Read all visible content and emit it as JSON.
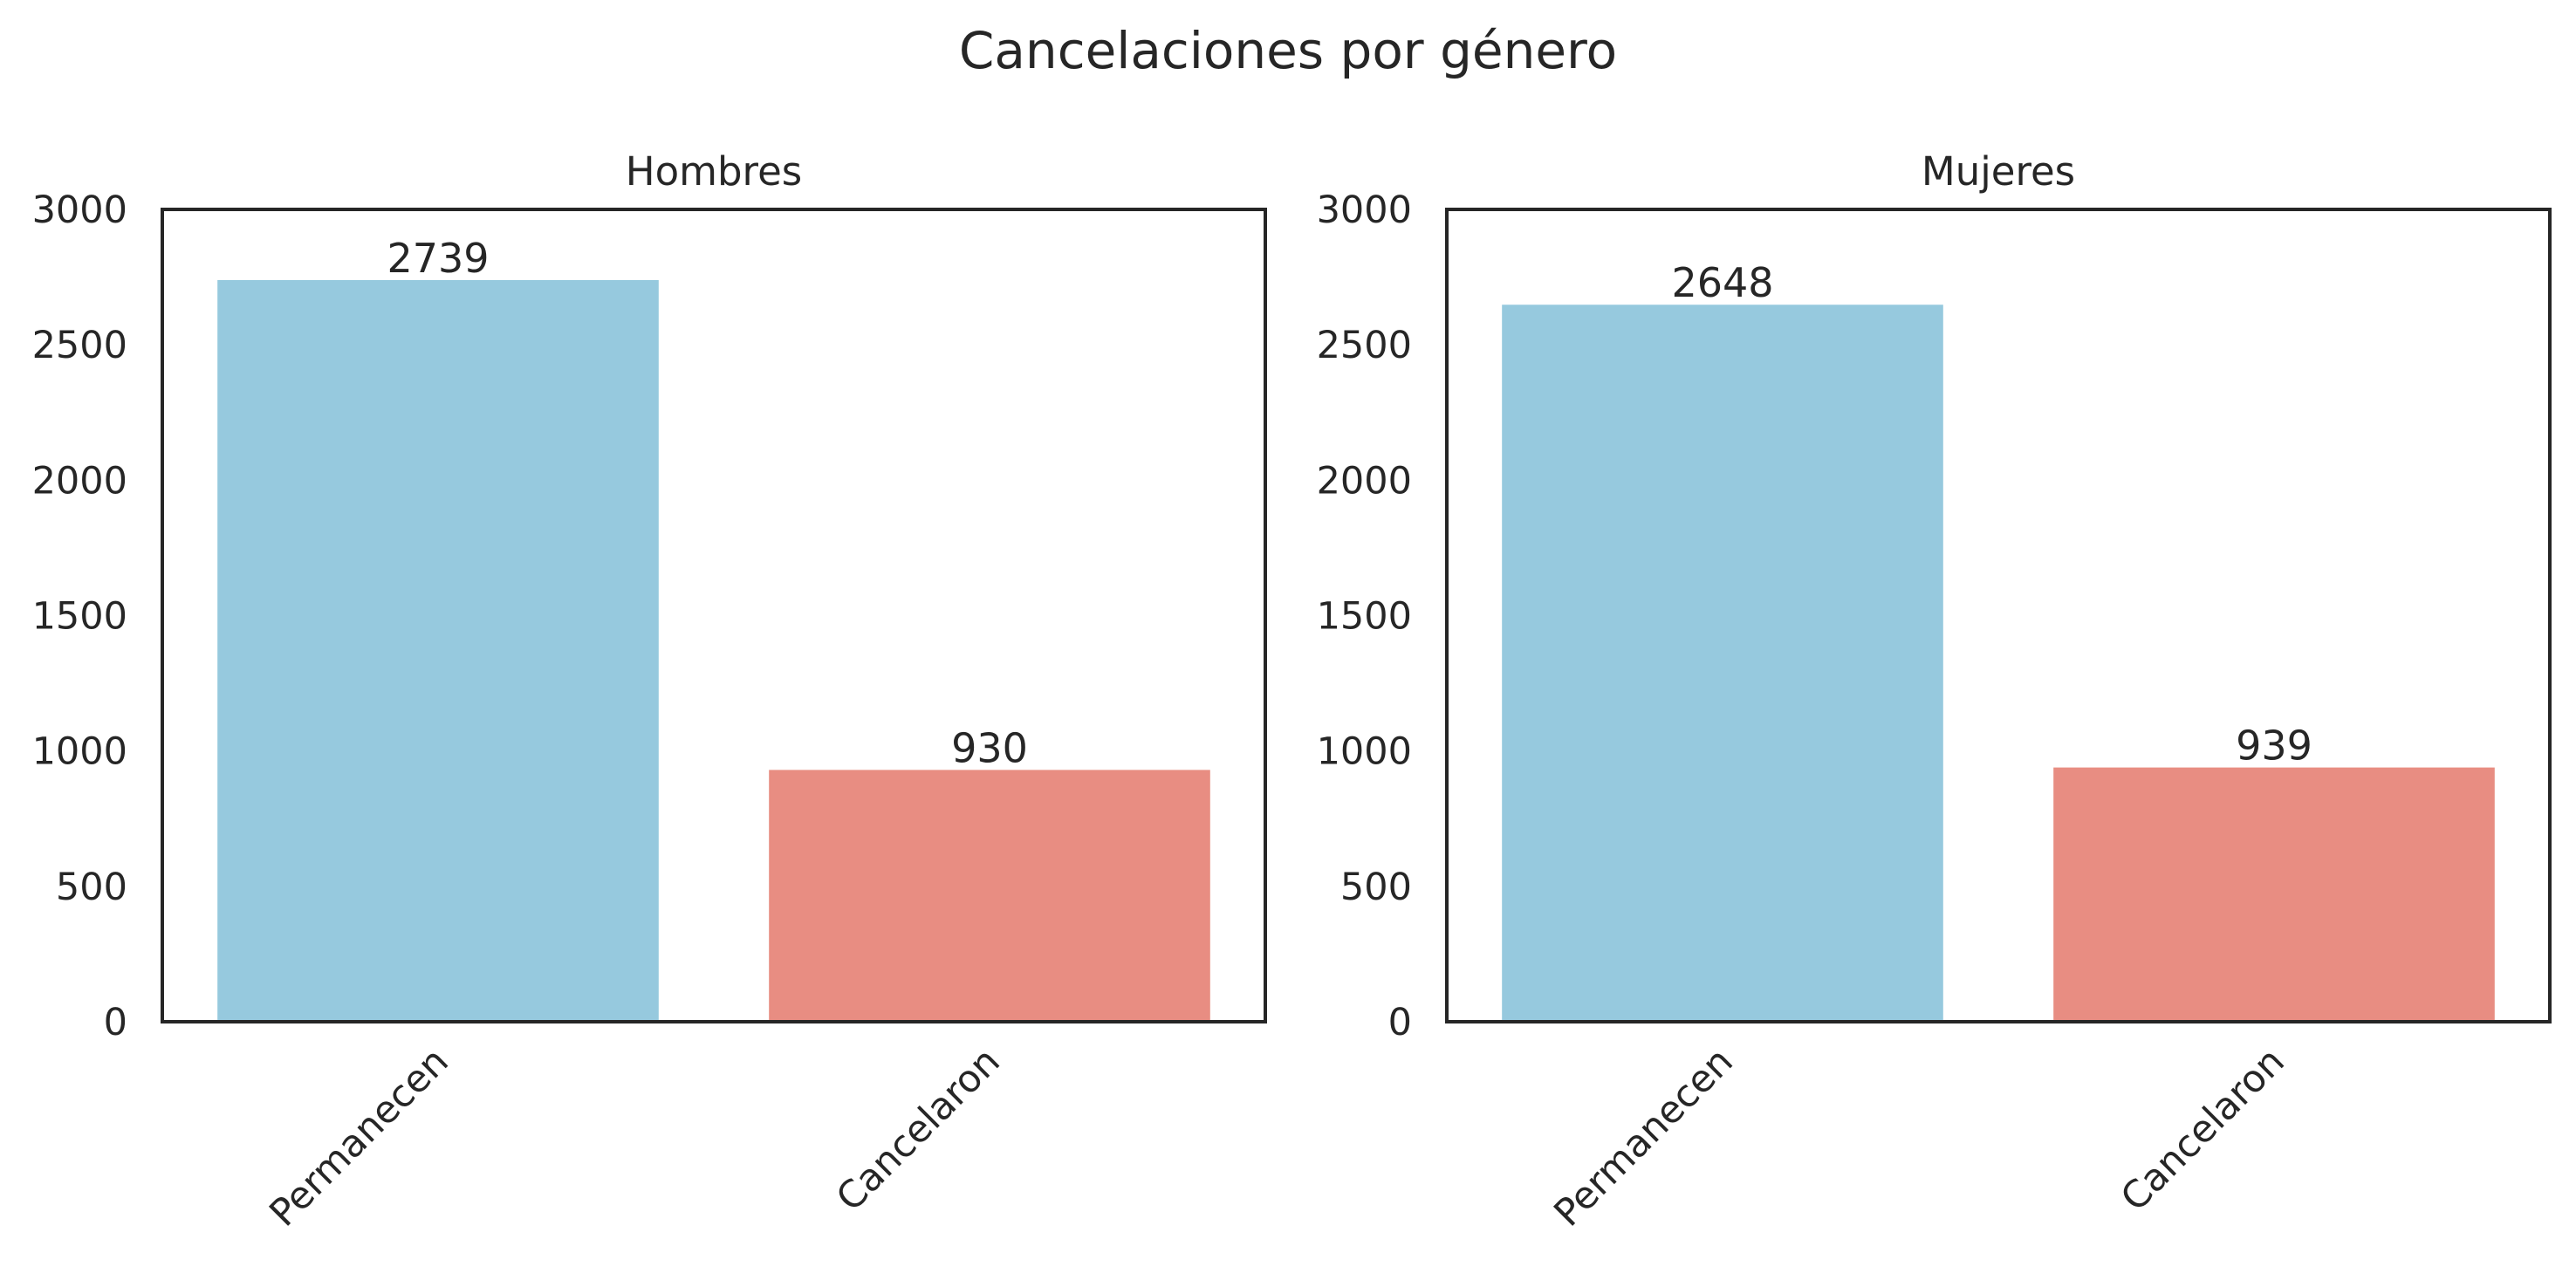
{
  "chart_data": {
    "title": "Cancelaciones por género",
    "charts": [
      {
        "type": "bar",
        "title": "Hombres",
        "categories": [
          "Permanecen",
          "Cancelaron"
        ],
        "values": [
          2739,
          930
        ],
        "data_labels": [
          "2739",
          "930"
        ],
        "ylim": [
          0,
          3000
        ],
        "yticks": [
          0,
          500,
          1000,
          1500,
          2000,
          2500,
          3000
        ],
        "xlabel": "",
        "ylabel": "",
        "grid": false,
        "xtick_rotation": 45
      },
      {
        "type": "bar",
        "title": "Mujeres",
        "categories": [
          "Permanecen",
          "Cancelaron"
        ],
        "values": [
          2648,
          939
        ],
        "data_labels": [
          "2648",
          "939"
        ],
        "ylim": [
          0,
          3000
        ],
        "yticks": [
          0,
          500,
          1000,
          1500,
          2000,
          2500,
          3000
        ],
        "xlabel": "",
        "ylabel": "",
        "grid": false,
        "xtick_rotation": 45
      }
    ],
    "colors": {
      "Permanecen": "#96c9de",
      "Cancelaron": "#e88d82",
      "axes": "#262626"
    }
  }
}
